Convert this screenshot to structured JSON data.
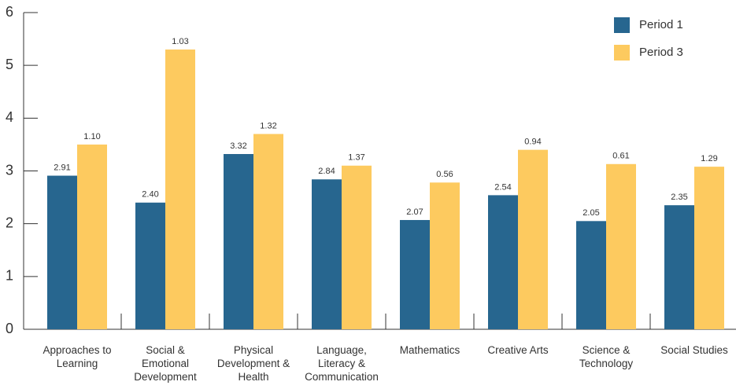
{
  "chart_data": {
    "type": "bar",
    "categories": [
      "Approaches to Learning",
      "Social & Emotional Development",
      "Physical Development & Health",
      "Language, Literacy & Communication",
      "Mathematics",
      "Creative Arts",
      "Science & Technology",
      "Social Studies"
    ],
    "series": [
      {
        "name": "Period 1",
        "color": "#27668f",
        "values": [
          2.91,
          2.4,
          3.32,
          2.84,
          2.07,
          2.54,
          2.05,
          2.35
        ],
        "value_labels": [
          "2.91",
          "2.40",
          "3.32",
          "2.84",
          "2.07",
          "2.54",
          "2.05",
          "2.35"
        ]
      },
      {
        "name": "Period 3",
        "color": "#fdca5f",
        "values": [
          3.5,
          5.3,
          3.7,
          3.1,
          2.78,
          3.4,
          3.13,
          3.08
        ],
        "annotations": [
          "1.10",
          "1.03",
          "1.32",
          "1.37",
          "0.56",
          "0.94",
          "0.61",
          "1.29"
        ]
      }
    ],
    "ylim": [
      0,
      6
    ],
    "yticks": [
      0,
      1,
      2,
      3,
      4,
      5,
      6
    ],
    "grid": false,
    "legend": "top-right"
  }
}
